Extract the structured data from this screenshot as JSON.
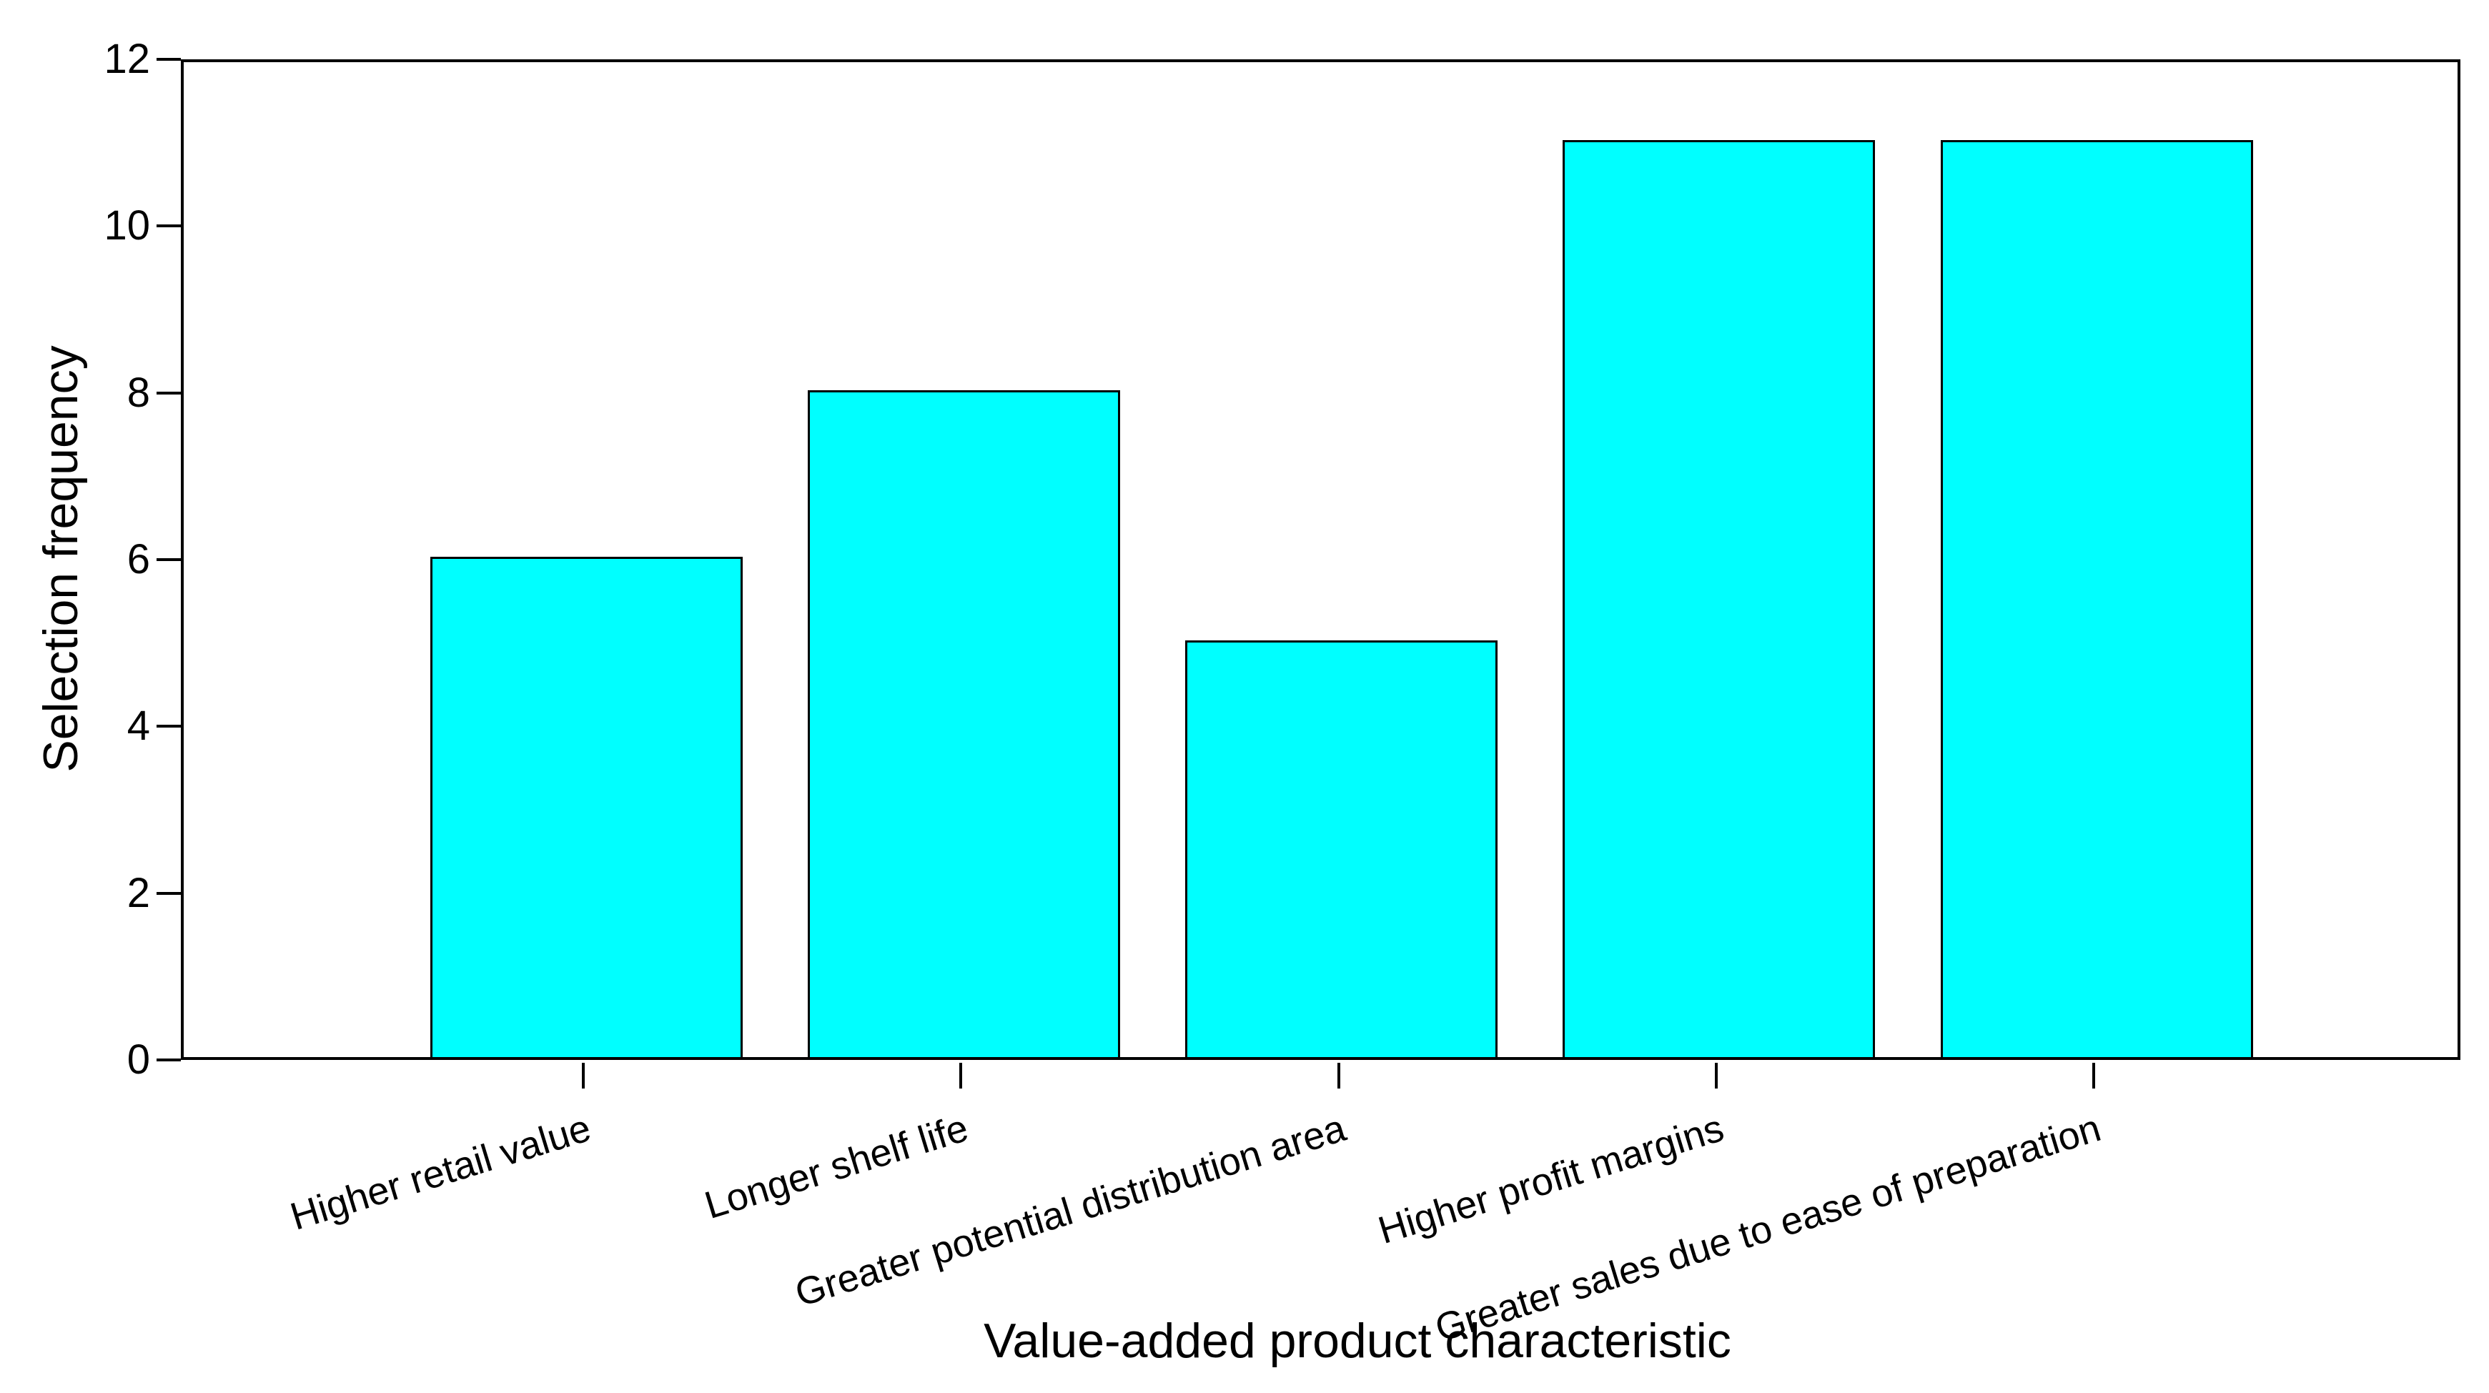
{
  "chart_data": {
    "type": "bar",
    "categories": [
      "Higher retail value",
      "Longer shelf life",
      "Greater potential distribution area",
      "Higher profit margins",
      "Greater sales due to ease of preparation"
    ],
    "values": [
      6,
      8,
      5,
      11,
      11
    ],
    "title": "",
    "xlabel": "Value-added product characteristic",
    "ylabel": "Selection frequency",
    "ylim": [
      0,
      12
    ],
    "yticks": [
      0,
      2,
      4,
      6,
      8,
      10,
      12
    ],
    "grid": false,
    "legend_position": "none",
    "x_tick_label_rotation_deg": 17,
    "colors": {
      "bar_fill": "#00ffff",
      "bar_border": "#000000",
      "axis": "#000000",
      "text": "#000000",
      "background": "#ffffff"
    }
  }
}
